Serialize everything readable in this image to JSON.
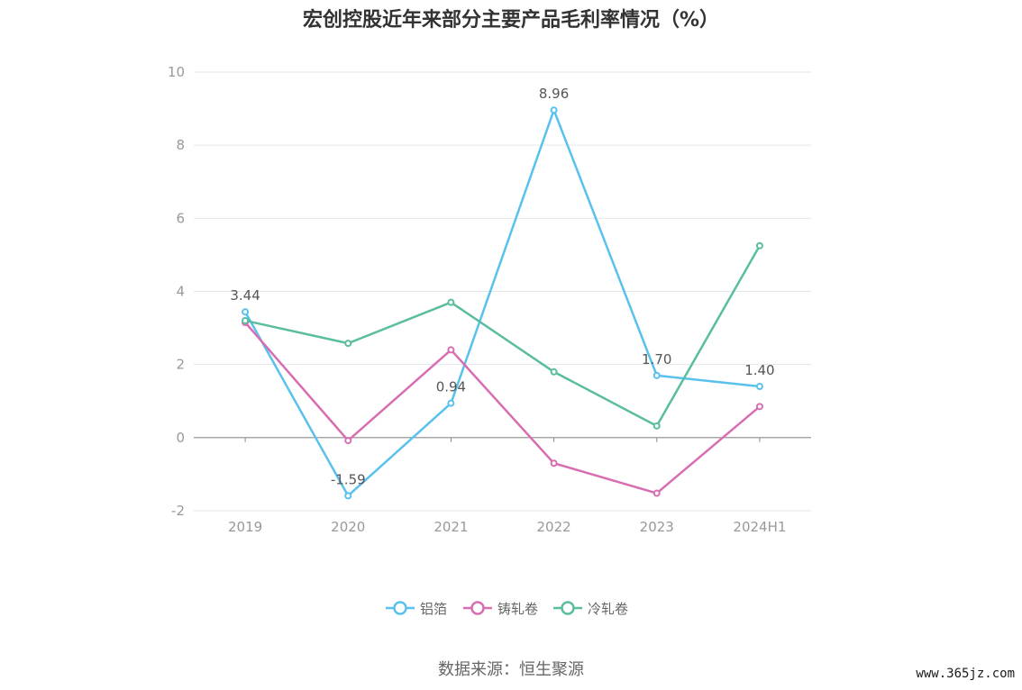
{
  "chart_data": {
    "type": "line",
    "title": "宏创控股近年来部分主要产品毛利率情况（%）",
    "categories": [
      "2019",
      "2020",
      "2021",
      "2022",
      "2023",
      "2024H1"
    ],
    "ylim": [
      -2,
      10
    ],
    "yticks": [
      -2,
      0,
      2,
      4,
      6,
      8,
      10
    ],
    "grid": true,
    "legend_position": "bottom",
    "series": [
      {
        "name": "铝箔",
        "color": "#59c1ee",
        "values": [
          3.44,
          -1.59,
          0.94,
          8.96,
          1.7,
          1.4
        ],
        "labels": [
          "3.44",
          "-1.59",
          "0.94",
          "8.96",
          "1.70",
          "1.40"
        ]
      },
      {
        "name": "铸轧卷",
        "color": "#d86eb2",
        "values": [
          3.15,
          -0.08,
          2.4,
          -0.7,
          -1.52,
          0.85
        ],
        "labels": []
      },
      {
        "name": "冷轧卷",
        "color": "#5bbd9f",
        "values": [
          3.2,
          2.58,
          3.7,
          1.8,
          0.32,
          5.25
        ],
        "labels": []
      }
    ]
  },
  "source": "数据来源：恒生聚源",
  "watermark": "www.365jz.com"
}
